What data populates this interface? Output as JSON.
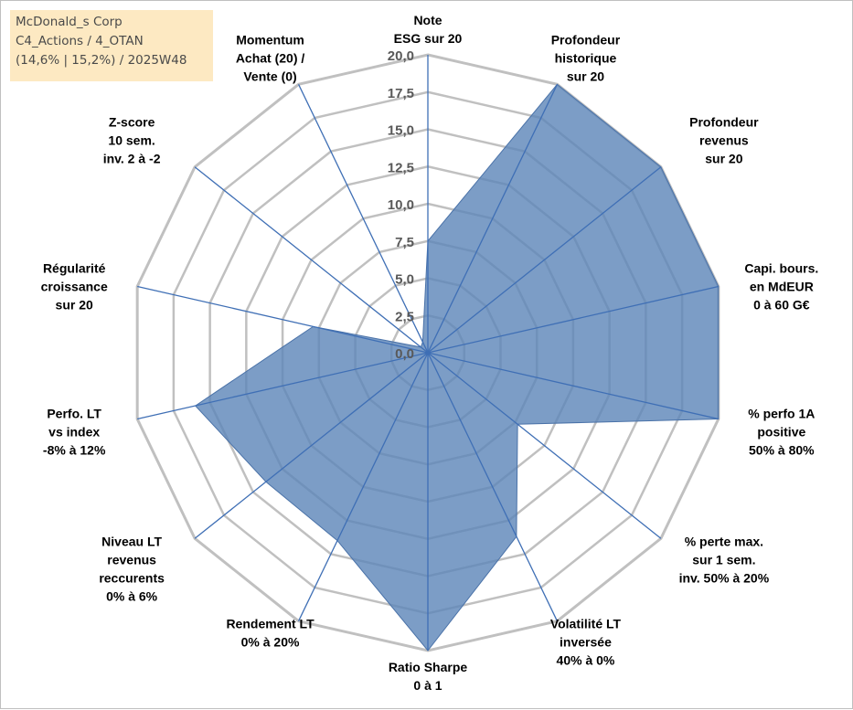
{
  "info": {
    "line1": "McDonald_s Corp",
    "line2": "C4_Actions / 4_OTAN",
    "line3": "(14,6% | 15,2%) / 2025W48"
  },
  "chart_data": {
    "type": "radar",
    "title": "",
    "range": [
      0,
      20
    ],
    "ticks": [
      "0,0",
      "2,5",
      "5,0",
      "7,5",
      "10,0",
      "12,5",
      "15,0",
      "17,5",
      "20,0"
    ],
    "axes": [
      {
        "lines": [
          "Note",
          "ESG sur 20"
        ]
      },
      {
        "lines": [
          "Profondeur",
          "historique",
          "sur 20"
        ]
      },
      {
        "lines": [
          "Profondeur",
          "revenus",
          "sur 20"
        ]
      },
      {
        "lines": [
          "Capi. bours.",
          "en MdEUR",
          "0 à 60 G€"
        ]
      },
      {
        "lines": [
          "% perfo 1A",
          "positive",
          "50% à 80%"
        ]
      },
      {
        "lines": [
          "% perte max.",
          "sur 1 sem.",
          "inv. 50% à 20%"
        ]
      },
      {
        "lines": [
          "Volatilité LT",
          "inversée",
          "40% à 0%"
        ]
      },
      {
        "lines": [
          "Ratio Sharpe",
          "0 à 1"
        ]
      },
      {
        "lines": [
          "Rendement LT",
          "0% à 20%"
        ]
      },
      {
        "lines": [
          "Niveau LT",
          "revenus",
          "reccurents",
          "0% à 6%"
        ]
      },
      {
        "lines": [
          "Perfo. LT",
          "vs index",
          "-8% à 12%"
        ]
      },
      {
        "lines": [
          "Régularité",
          "croissance",
          "sur 20"
        ]
      },
      {
        "lines": [
          "Z-score",
          "10 sem.",
          "inv. 2 à -2"
        ]
      },
      {
        "lines": [
          "Momentum",
          "Achat (20) /",
          "Vente (0)"
        ]
      }
    ],
    "series": [
      {
        "name": "McDonald_s Corp",
        "values": [
          7.5,
          20.0,
          20.0,
          20.0,
          20.0,
          7.7,
          13.7,
          20.0,
          14.0,
          13.9,
          16.0,
          7.9,
          0.6,
          0.8
        ]
      }
    ],
    "colors": {
      "fill": "#5b84b8",
      "fill_opacity": "0.8",
      "stroke": "#4a72a8",
      "grid": "#c0c0c0",
      "spoke": "#3f6fb5"
    }
  }
}
